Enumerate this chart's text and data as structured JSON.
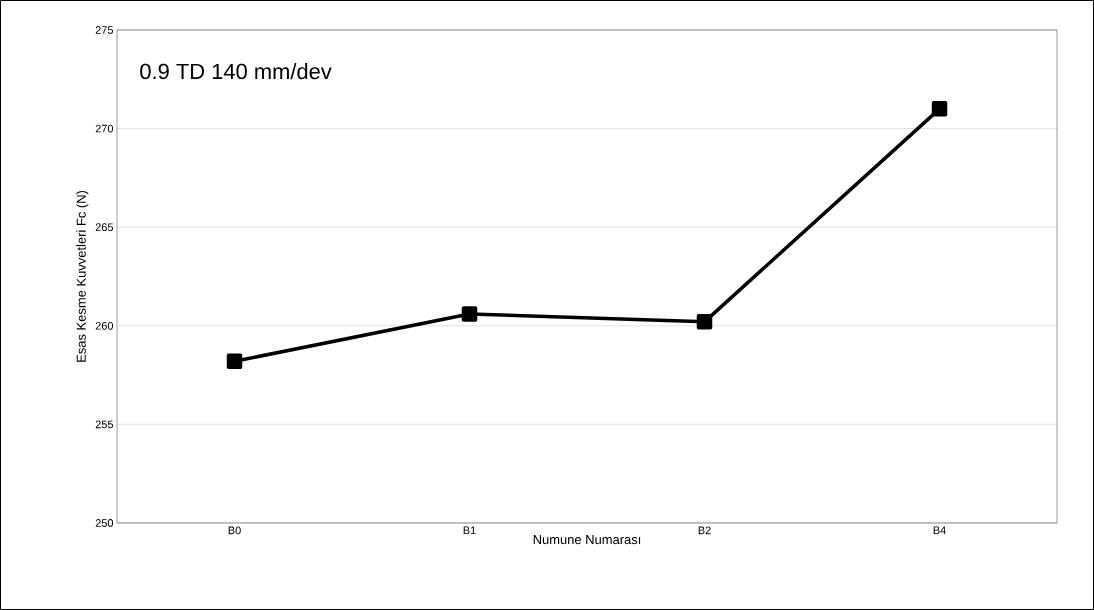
{
  "chart_data": {
    "type": "line",
    "xlabel": "Numune Numarası",
    "ylabel": "Esas Kesme Kuvvetleri Fc (N)",
    "annotations": [
      "0.9 TD 140 mm/dev"
    ],
    "categories": [
      "B0",
      "B1",
      "B2",
      "B4"
    ],
    "series": [
      {
        "color": "#000000",
        "values": [
          258.2,
          260.6,
          260.2,
          271.0
        ]
      }
    ],
    "ylim": [
      250,
      275
    ],
    "yticks": [
      250,
      255,
      260,
      265,
      270,
      275
    ],
    "grid": "y",
    "marker": "square",
    "line_style": "solid"
  }
}
